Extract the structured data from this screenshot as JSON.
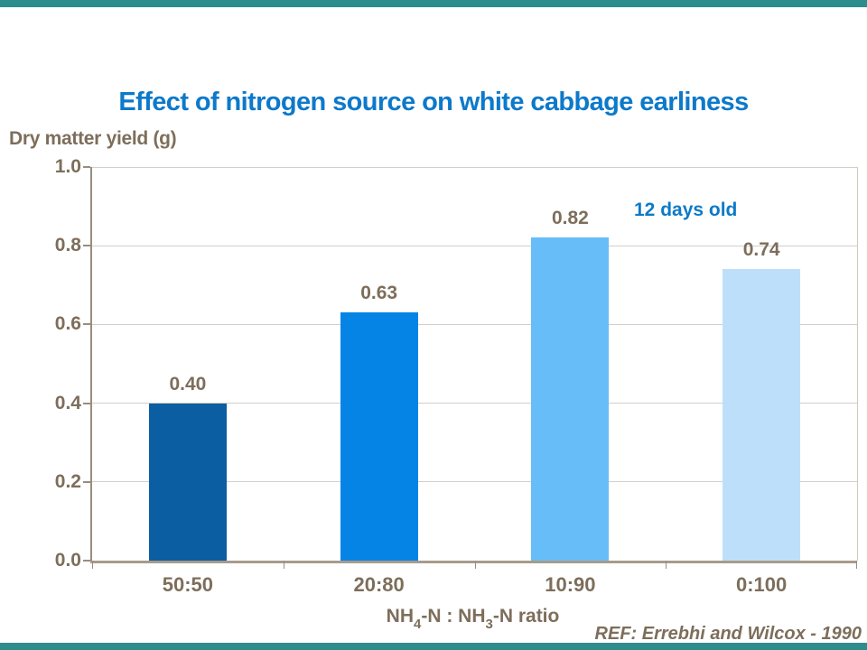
{
  "slide": {
    "accent_band_color": "#2d8c8c",
    "background_color": "#ffffff"
  },
  "title": {
    "text": "Effect of nitrogen source on white cabbage earliness",
    "color": "#0d79ca"
  },
  "y_axis_title": "Dry matter yield (g)",
  "x_axis_title": {
    "part1": "NH",
    "sub1": "4",
    "part2": "-N : NH",
    "sub2": "3",
    "part3": "-N ratio"
  },
  "annotation": {
    "text": "12 days old",
    "color": "#0c7ac8"
  },
  "reference": "REF: Errebhi and Wilcox - 1990",
  "text_color": "#7d6e5b",
  "chart_data": {
    "type": "bar",
    "title": "Effect of nitrogen source on white cabbage earliness",
    "categories": [
      "50:50",
      "20:80",
      "10:90",
      "0:100"
    ],
    "values": [
      0.4,
      0.63,
      0.82,
      0.74
    ],
    "value_labels": [
      "0.40",
      "0.63",
      "0.82",
      "0.74"
    ],
    "bar_colors": [
      "#0b5ea1",
      "#0584e6",
      "#66bdf8",
      "#bedff9"
    ],
    "xlabel": "NH4-N : NH3-N ratio",
    "ylabel": "Dry matter yield (g)",
    "ylim": [
      0.0,
      1.0
    ],
    "yticks": [
      0.0,
      0.2,
      0.4,
      0.6,
      0.8,
      1.0
    ],
    "ytick_labels": [
      "0.0",
      "0.2",
      "0.4",
      "0.6",
      "0.8",
      "1.0"
    ],
    "grid": true,
    "legend": false,
    "annotation": "12 days old"
  }
}
